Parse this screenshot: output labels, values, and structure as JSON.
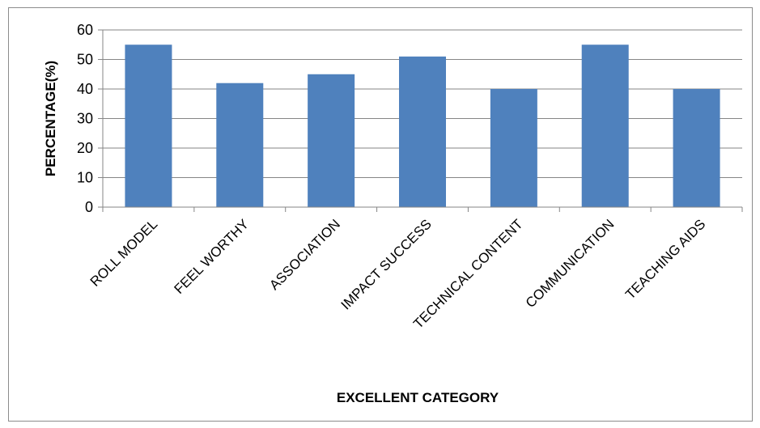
{
  "chart_data": {
    "type": "bar",
    "categories": [
      "ROLL MODEL",
      "FEEL WORTHY",
      "ASSOCIATION",
      "IMPACT SUCCESS",
      "TECHNICAL CONTENT",
      "COMMUNICATION",
      "TEACHING AIDS"
    ],
    "values": [
      55,
      42,
      45,
      51,
      40,
      55,
      40
    ],
    "xlabel": "EXCELLENT  CATEGORY",
    "ylabel": "PERCENTAGE(%)",
    "ylim": [
      0,
      60
    ],
    "yticks": [
      0,
      10,
      20,
      30,
      40,
      50,
      60
    ],
    "grid": true,
    "legend": "none",
    "bar_color": "#4f81bd",
    "grid_color": "#868686"
  }
}
